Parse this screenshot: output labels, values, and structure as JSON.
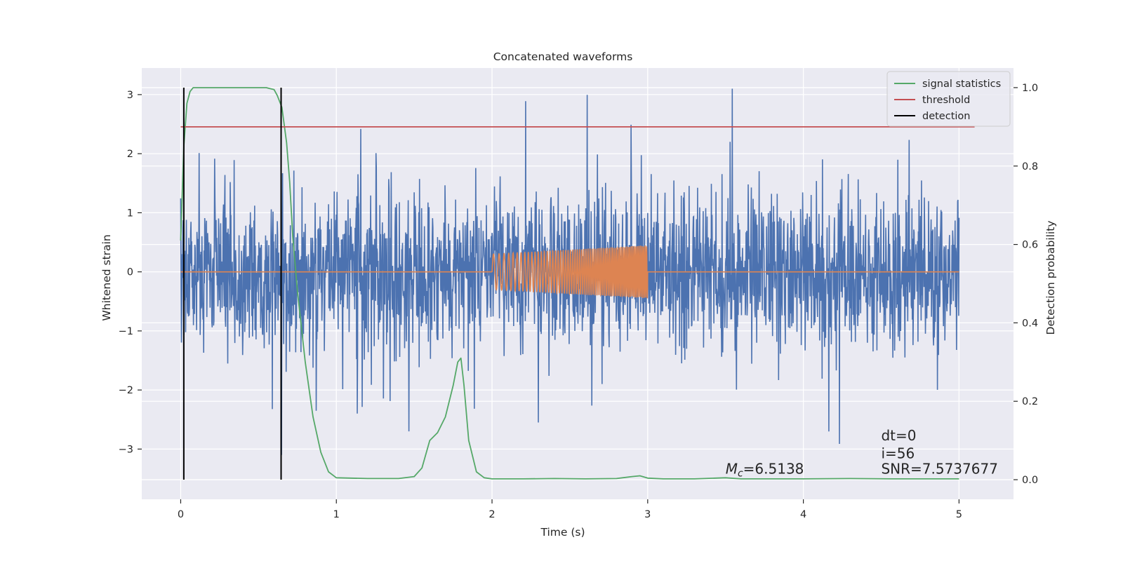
{
  "chart_data": {
    "type": "line",
    "title": "Concatenated waveforms",
    "xlabel": "Time (s)",
    "ylabel": "Whitened strain",
    "y2label": "Detection probability",
    "xlim": [
      -0.25,
      5.35
    ],
    "ylim": [
      -3.85,
      3.45
    ],
    "y2lim": [
      -0.05,
      1.05
    ],
    "x_ticks": [
      0,
      1,
      2,
      3,
      4,
      5
    ],
    "y_ticks": [
      -3,
      -2,
      -1,
      0,
      1,
      2,
      3
    ],
    "y2_ticks": [
      0.0,
      0.2,
      0.4,
      0.6,
      0.8,
      1.0
    ],
    "x_tick_labels": [
      "0",
      "1",
      "2",
      "3",
      "4",
      "5"
    ],
    "y_tick_labels": [
      "−3",
      "−2",
      "−1",
      "0",
      "1",
      "2",
      "3"
    ],
    "y2_tick_labels": [
      "0.0",
      "0.2",
      "0.4",
      "0.6",
      "0.8",
      "1.0"
    ],
    "grid": true,
    "legend_position": "top-right",
    "colors": {
      "strain": "#4c72b0",
      "injected": "#dd8452",
      "signal_statistics": "#55a868",
      "threshold": "#c44e52",
      "detection": "#000000",
      "background": "#eaeaf2"
    },
    "series": [
      {
        "role": "strain",
        "axis": "left",
        "x_range": [
          0,
          5
        ],
        "envelope_typical": 1.3,
        "envelope_peak": 3.1
      },
      {
        "role": "injected",
        "axis": "left",
        "x_range": [
          2,
          3
        ],
        "amplitude_start": 0.3,
        "amplitude_end": 0.45
      },
      {
        "name": "signal statistics",
        "axis": "right",
        "x": [
          0.0,
          0.02,
          0.04,
          0.06,
          0.08,
          0.1,
          0.2,
          0.3,
          0.4,
          0.5,
          0.55,
          0.6,
          0.62,
          0.65,
          0.68,
          0.7,
          0.72,
          0.75,
          0.8,
          0.85,
          0.9,
          0.95,
          1.0,
          1.2,
          1.4,
          1.5,
          1.55,
          1.6,
          1.65,
          1.7,
          1.75,
          1.78,
          1.8,
          1.82,
          1.85,
          1.9,
          1.95,
          2.0,
          2.2,
          2.4,
          2.6,
          2.8,
          2.9,
          2.95,
          3.0,
          3.1,
          3.3,
          3.5,
          3.6,
          3.8,
          4.0,
          4.3,
          4.6,
          5.0
        ],
        "y": [
          0.61,
          0.85,
          0.96,
          0.99,
          1.0,
          1.0,
          1.0,
          1.0,
          1.0,
          1.0,
          1.0,
          0.995,
          0.98,
          0.95,
          0.86,
          0.76,
          0.62,
          0.48,
          0.3,
          0.16,
          0.07,
          0.02,
          0.005,
          0.003,
          0.003,
          0.008,
          0.03,
          0.1,
          0.12,
          0.16,
          0.24,
          0.3,
          0.31,
          0.24,
          0.1,
          0.02,
          0.005,
          0.002,
          0.002,
          0.003,
          0.002,
          0.003,
          0.008,
          0.01,
          0.004,
          0.002,
          0.002,
          0.005,
          0.002,
          0.002,
          0.002,
          0.003,
          0.002,
          0.002
        ]
      },
      {
        "name": "threshold",
        "axis": "right",
        "x": [
          0,
          5.1
        ],
        "y": [
          0.9,
          0.9
        ]
      },
      {
        "name": "detection",
        "axis": "right",
        "x_positions": [
          0.02,
          0.645
        ],
        "y_range": [
          0.0,
          1.0
        ]
      }
    ],
    "annotations": [
      {
        "id": "mc",
        "prefix": "M",
        "sub": "c",
        "value": "=6.5138",
        "x": 3.5,
        "y2": 0.015
      },
      {
        "id": "dt",
        "text": "dt=0",
        "x": 4.5,
        "y2": 0.1
      },
      {
        "id": "i",
        "text": "i=56",
        "x": 4.5,
        "y2": 0.055
      },
      {
        "id": "snr",
        "text": "SNR=7.5737677",
        "x": 4.5,
        "y2": 0.015
      }
    ]
  }
}
